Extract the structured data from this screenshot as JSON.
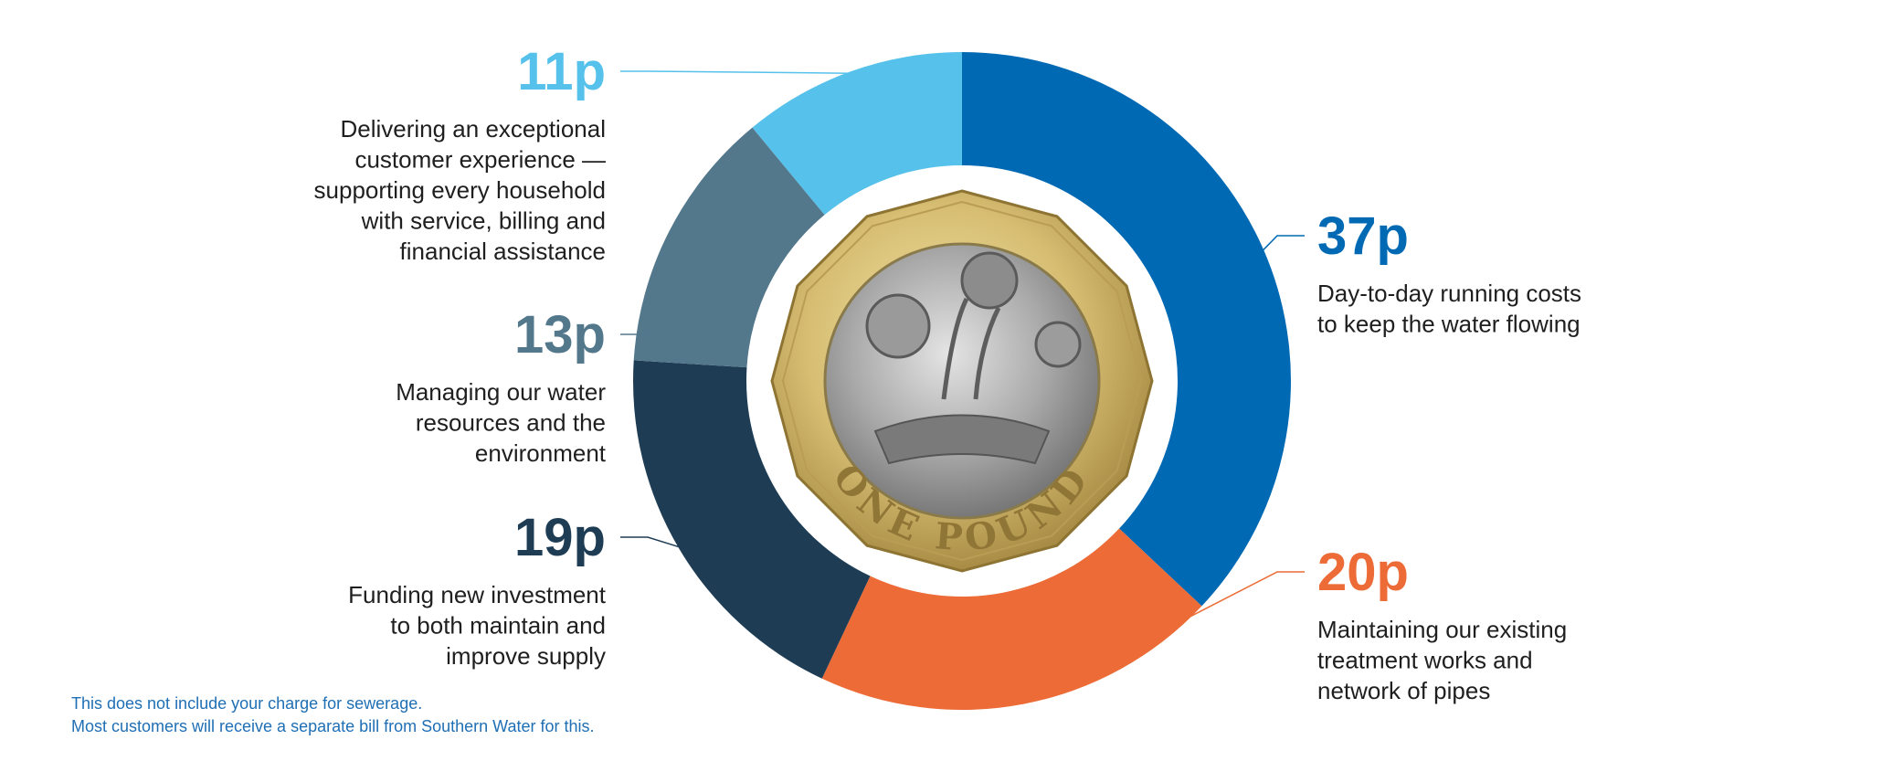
{
  "chart_data": {
    "type": "pie",
    "title": "",
    "unit": "p",
    "series": [
      {
        "label": "37p",
        "value": 37,
        "color": "#0069b4",
        "description": [
          "Day-to-day running costs",
          "to keep the water flowing"
        ]
      },
      {
        "label": "20p",
        "value": 20,
        "color": "#ec6b36",
        "description": [
          "Maintaining our existing",
          "treatment works and",
          "network of pipes"
        ]
      },
      {
        "label": "19p",
        "value": 19,
        "color": "#1e3d55",
        "description": [
          "Funding new investment",
          "to both maintain and",
          "improve supply"
        ]
      },
      {
        "label": "13p",
        "value": 13,
        "color": "#53778b",
        "description": [
          "Managing our water",
          "resources and the",
          "environment"
        ]
      },
      {
        "label": "11p",
        "value": 11,
        "color": "#56c1ea",
        "description": [
          "Delivering an exceptional",
          "customer experience —",
          "supporting every household",
          "with service, billing and",
          "financial assistance"
        ]
      }
    ],
    "center_image": "one-pound-coin",
    "coin_inscription": "ONE POUND"
  },
  "footnote": {
    "line1": "This does not include your charge for sewerage.",
    "line2": "Most customers will receive a separate bill from Southern Water for this."
  }
}
